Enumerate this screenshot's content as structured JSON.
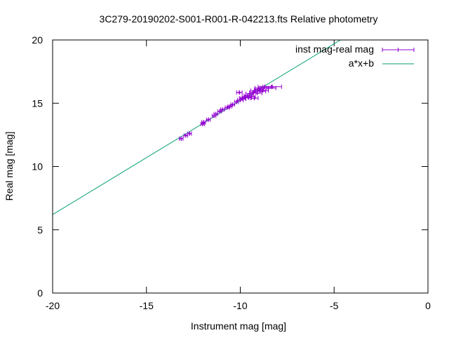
{
  "chart_data": {
    "type": "scatter",
    "title": "3C279-20190202-S001-R001-R-042213.fts Relative photometry",
    "xlabel": "Instrument mag [mag]",
    "ylabel": "Real mag [mag]",
    "xlim": [
      -20,
      0
    ],
    "ylim": [
      0,
      20
    ],
    "x_ticks": [
      -20,
      -15,
      -10,
      -5,
      0
    ],
    "y_ticks": [
      0,
      5,
      10,
      15,
      20
    ],
    "x_tick_labels": [
      "-20",
      "-15",
      "-10",
      "-5",
      "0"
    ],
    "y_tick_labels": [
      "0",
      "5",
      "10",
      "15",
      "20"
    ],
    "grid": false,
    "legend_position": "top-right",
    "series": [
      {
        "name": "inst mag-real mag",
        "kind": "points_with_xerror",
        "color": "#9400d3",
        "points": [
          {
            "x": -13.15,
            "y": 12.2,
            "xerr": 0.1
          },
          {
            "x": -12.9,
            "y": 12.45,
            "xerr": 0.1
          },
          {
            "x": -12.7,
            "y": 12.6,
            "xerr": 0.1
          },
          {
            "x": -12.0,
            "y": 13.35,
            "xerr": 0.1
          },
          {
            "x": -11.95,
            "y": 13.5,
            "xerr": 0.1
          },
          {
            "x": -11.7,
            "y": 13.7,
            "xerr": 0.1
          },
          {
            "x": -11.4,
            "y": 14.0,
            "xerr": 0.1
          },
          {
            "x": -11.3,
            "y": 14.15,
            "xerr": 0.1
          },
          {
            "x": -11.1,
            "y": 14.35,
            "xerr": 0.1
          },
          {
            "x": -10.95,
            "y": 14.5,
            "xerr": 0.1
          },
          {
            "x": -10.7,
            "y": 14.65,
            "xerr": 0.1
          },
          {
            "x": -10.55,
            "y": 14.75,
            "xerr": 0.1
          },
          {
            "x": -10.4,
            "y": 14.9,
            "xerr": 0.1
          },
          {
            "x": -10.2,
            "y": 15.1,
            "xerr": 0.1
          },
          {
            "x": -10.0,
            "y": 15.25,
            "xerr": 0.15
          },
          {
            "x": -9.9,
            "y": 15.4,
            "xerr": 0.15
          },
          {
            "x": -9.75,
            "y": 15.5,
            "xerr": 0.15
          },
          {
            "x": -9.6,
            "y": 15.6,
            "xerr": 0.2
          },
          {
            "x": -9.5,
            "y": 15.75,
            "xerr": 0.2
          },
          {
            "x": -9.4,
            "y": 15.55,
            "xerr": 0.2
          },
          {
            "x": -9.3,
            "y": 15.85,
            "xerr": 0.2
          },
          {
            "x": -9.2,
            "y": 16.0,
            "xerr": 0.25
          },
          {
            "x": -9.1,
            "y": 15.8,
            "xerr": 0.25
          },
          {
            "x": -9.0,
            "y": 16.1,
            "xerr": 0.25
          },
          {
            "x": -8.9,
            "y": 16.2,
            "xerr": 0.3
          },
          {
            "x": -8.8,
            "y": 16.0,
            "xerr": 0.3
          },
          {
            "x": -8.7,
            "y": 16.3,
            "xerr": 0.35
          },
          {
            "x": -8.5,
            "y": 16.2,
            "xerr": 0.4
          },
          {
            "x": -8.3,
            "y": 16.3,
            "xerr": 0.5
          },
          {
            "x": -10.05,
            "y": 15.85,
            "xerr": 0.15
          },
          {
            "x": -9.85,
            "y": 15.35,
            "xerr": 0.15
          },
          {
            "x": -9.55,
            "y": 15.45,
            "xerr": 0.15
          },
          {
            "x": -9.25,
            "y": 15.4,
            "xerr": 0.2
          },
          {
            "x": -8.95,
            "y": 15.95,
            "xerr": 0.3
          }
        ]
      },
      {
        "name": "a*x+b",
        "kind": "line",
        "color": "#009e73",
        "x": [
          -20,
          -4.66
        ],
        "y": [
          6.2,
          20.0
        ]
      }
    ]
  }
}
